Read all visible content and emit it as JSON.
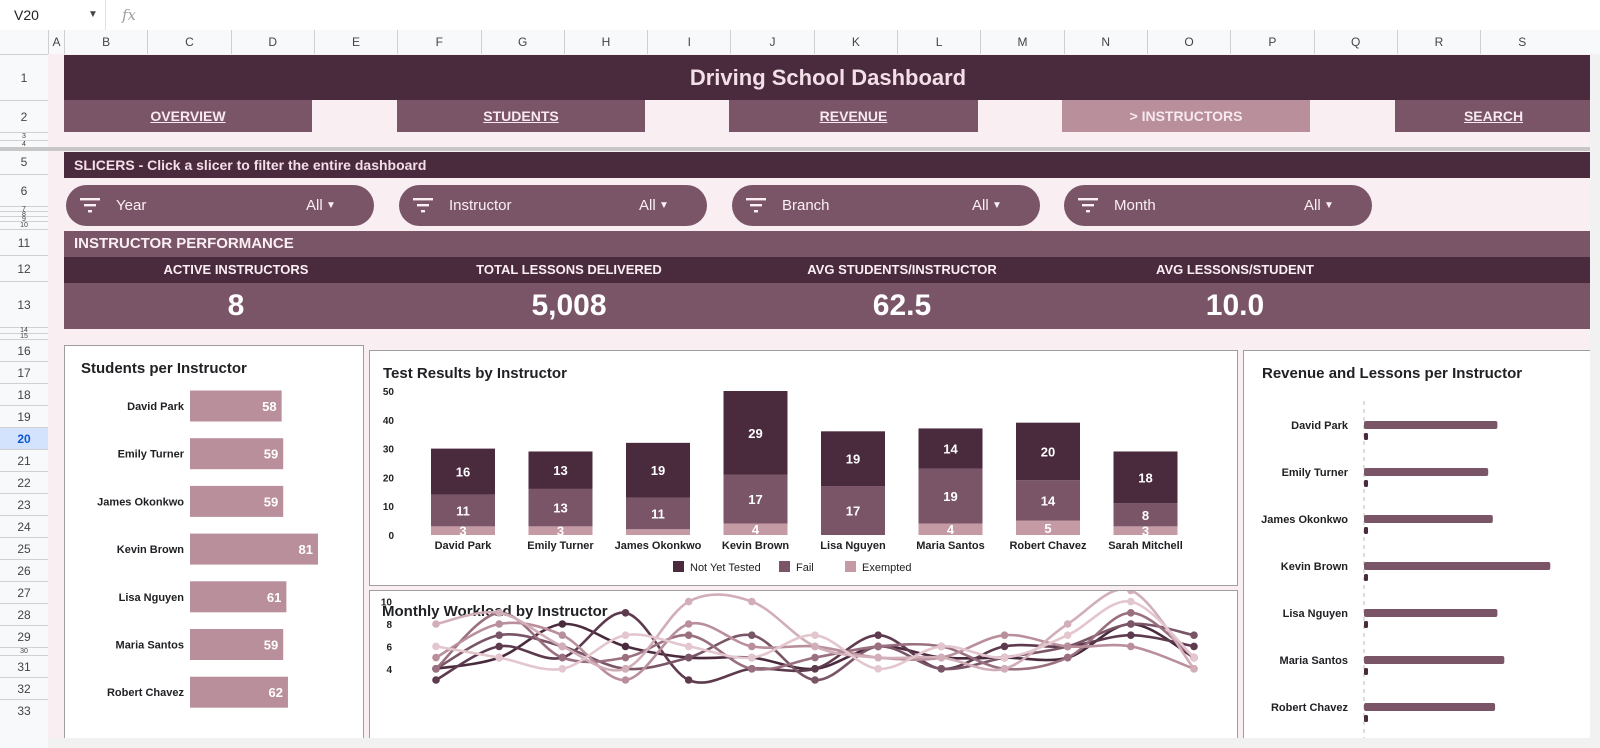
{
  "sheet": {
    "namebox": "V20",
    "fx": "fx",
    "columns": [
      "A",
      "B",
      "C",
      "D",
      "E",
      "F",
      "G",
      "H",
      "I",
      "J",
      "K",
      "L",
      "M",
      "N",
      "O",
      "P",
      "Q",
      "R",
      "S"
    ],
    "rows": [
      "1",
      "2",
      "3",
      "4",
      "5",
      "6",
      "7",
      "8",
      "9",
      "10",
      "11",
      "12",
      "13",
      "14",
      "15",
      "16",
      "17",
      "18",
      "19",
      "20",
      "21",
      "22",
      "23",
      "24",
      "25",
      "26",
      "27",
      "28",
      "29",
      "30",
      "31",
      "32",
      "33"
    ],
    "selected_row": "20"
  },
  "dashboard": {
    "title": "Driving School Dashboard",
    "nav": [
      {
        "label": "OVERVIEW",
        "active": false
      },
      {
        "label": "STUDENTS",
        "active": false
      },
      {
        "label": "REVENUE",
        "active": false
      },
      {
        "label": "> INSTRUCTORS",
        "active": true
      },
      {
        "label": "SEARCH",
        "active": false
      }
    ],
    "slicer_header": "SLICERS - Click a slicer to filter the entire dashboard",
    "slicers": [
      {
        "label": "Year",
        "value": "All"
      },
      {
        "label": "Instructor",
        "value": "All"
      },
      {
        "label": "Branch",
        "value": "All"
      },
      {
        "label": "Month",
        "value": "All"
      }
    ],
    "section": "INSTRUCTOR PERFORMANCE",
    "kpis": [
      {
        "label": "ACTIVE INSTRUCTORS",
        "value": "8"
      },
      {
        "label": "TOTAL LESSONS DELIVERED",
        "value": "5,008"
      },
      {
        "label": "AVG STUDENTS/INSTRUCTOR",
        "value": "62.5"
      },
      {
        "label": "AVG LESSONS/STUDENT",
        "value": "10.0"
      }
    ],
    "colors": {
      "dark": "#4a2a3d",
      "mid": "#7a5567",
      "light": "#b98f9b",
      "pale": "#f9eef1"
    }
  },
  "chart_data": [
    {
      "type": "bar",
      "orientation": "horizontal",
      "title": "Students per Instructor",
      "categories": [
        "David Park",
        "Emily Turner",
        "James Okonkwo",
        "Kevin Brown",
        "Lisa Nguyen",
        "Maria Santos",
        "Robert Chavez"
      ],
      "values": [
        58,
        59,
        59,
        81,
        61,
        59,
        62
      ],
      "color": "#b98f9b"
    },
    {
      "type": "bar",
      "stacked": true,
      "title": "Test Results by Instructor",
      "categories": [
        "David Park",
        "Emily Turner",
        "James Okonkwo",
        "Kevin Brown",
        "Lisa Nguyen",
        "Maria Santos",
        "Robert Chavez",
        "Sarah Mitchell"
      ],
      "ylim": [
        0,
        50
      ],
      "yticks": [
        0,
        10,
        20,
        30,
        40,
        50
      ],
      "legend": "bottom",
      "series": [
        {
          "name": "Exempted",
          "color": "#c49aa5",
          "values": [
            3,
            3,
            2,
            4,
            0,
            4,
            5,
            3
          ]
        },
        {
          "name": "Fail",
          "color": "#7a5567",
          "values": [
            11,
            13,
            11,
            17,
            17,
            19,
            14,
            8
          ]
        },
        {
          "name": "Not Yet Tested",
          "color": "#4a2a3d",
          "values": [
            16,
            13,
            19,
            29,
            19,
            14,
            20,
            18
          ]
        }
      ],
      "legend_order": [
        "Not Yet Tested",
        "Fail",
        "Exempted"
      ]
    },
    {
      "type": "line",
      "title": "Monthly Workload by Instructor",
      "ylim": [
        0,
        12
      ],
      "yticks": [
        4,
        6,
        8,
        10,
        12
      ],
      "series": [
        {
          "color": "#4a2a3d",
          "values": [
            4,
            5,
            8,
            6,
            5,
            5,
            4,
            6,
            5,
            5,
            5,
            8,
            5
          ]
        },
        {
          "color": "#5e3a4e",
          "values": [
            3,
            6,
            5,
            9,
            3,
            4,
            4,
            7,
            4,
            6,
            6,
            7,
            6
          ]
        },
        {
          "color": "#7a5567",
          "values": [
            4,
            7,
            6,
            4,
            5,
            7,
            3,
            6,
            4,
            5,
            6,
            8,
            7
          ]
        },
        {
          "color": "#9a6f7f",
          "values": [
            4,
            9,
            5,
            5,
            7,
            4,
            5,
            6,
            6,
            4,
            5,
            9,
            5
          ]
        },
        {
          "color": "#b98f9b",
          "values": [
            5,
            8,
            7,
            3,
            8,
            6,
            6,
            5,
            5,
            7,
            6,
            6,
            4
          ]
        },
        {
          "color": "#d1aeb8",
          "values": [
            8,
            9,
            6,
            4,
            10,
            10,
            6,
            5,
            5,
            4,
            8,
            11,
            4
          ]
        },
        {
          "color": "#e3c6ce",
          "values": [
            6,
            5,
            4,
            7,
            6,
            5,
            7,
            4,
            6,
            5,
            7,
            10,
            5
          ]
        }
      ]
    },
    {
      "type": "bar",
      "orientation": "horizontal",
      "title": "Revenue and Lessons per Instructor",
      "categories": [
        "David Park",
        "Emily Turner",
        "James Okonkwo",
        "Kevin Brown",
        "Lisa Nguyen",
        "Maria Santos",
        "Robert Chavez"
      ],
      "series": [
        {
          "color": "#7a5567",
          "values": [
            58,
            54,
            56,
            81,
            58,
            61,
            57
          ]
        },
        {
          "color": "#4a2a3d",
          "values": [
            1,
            1,
            1,
            1,
            1,
            1,
            1
          ]
        }
      ]
    }
  ]
}
